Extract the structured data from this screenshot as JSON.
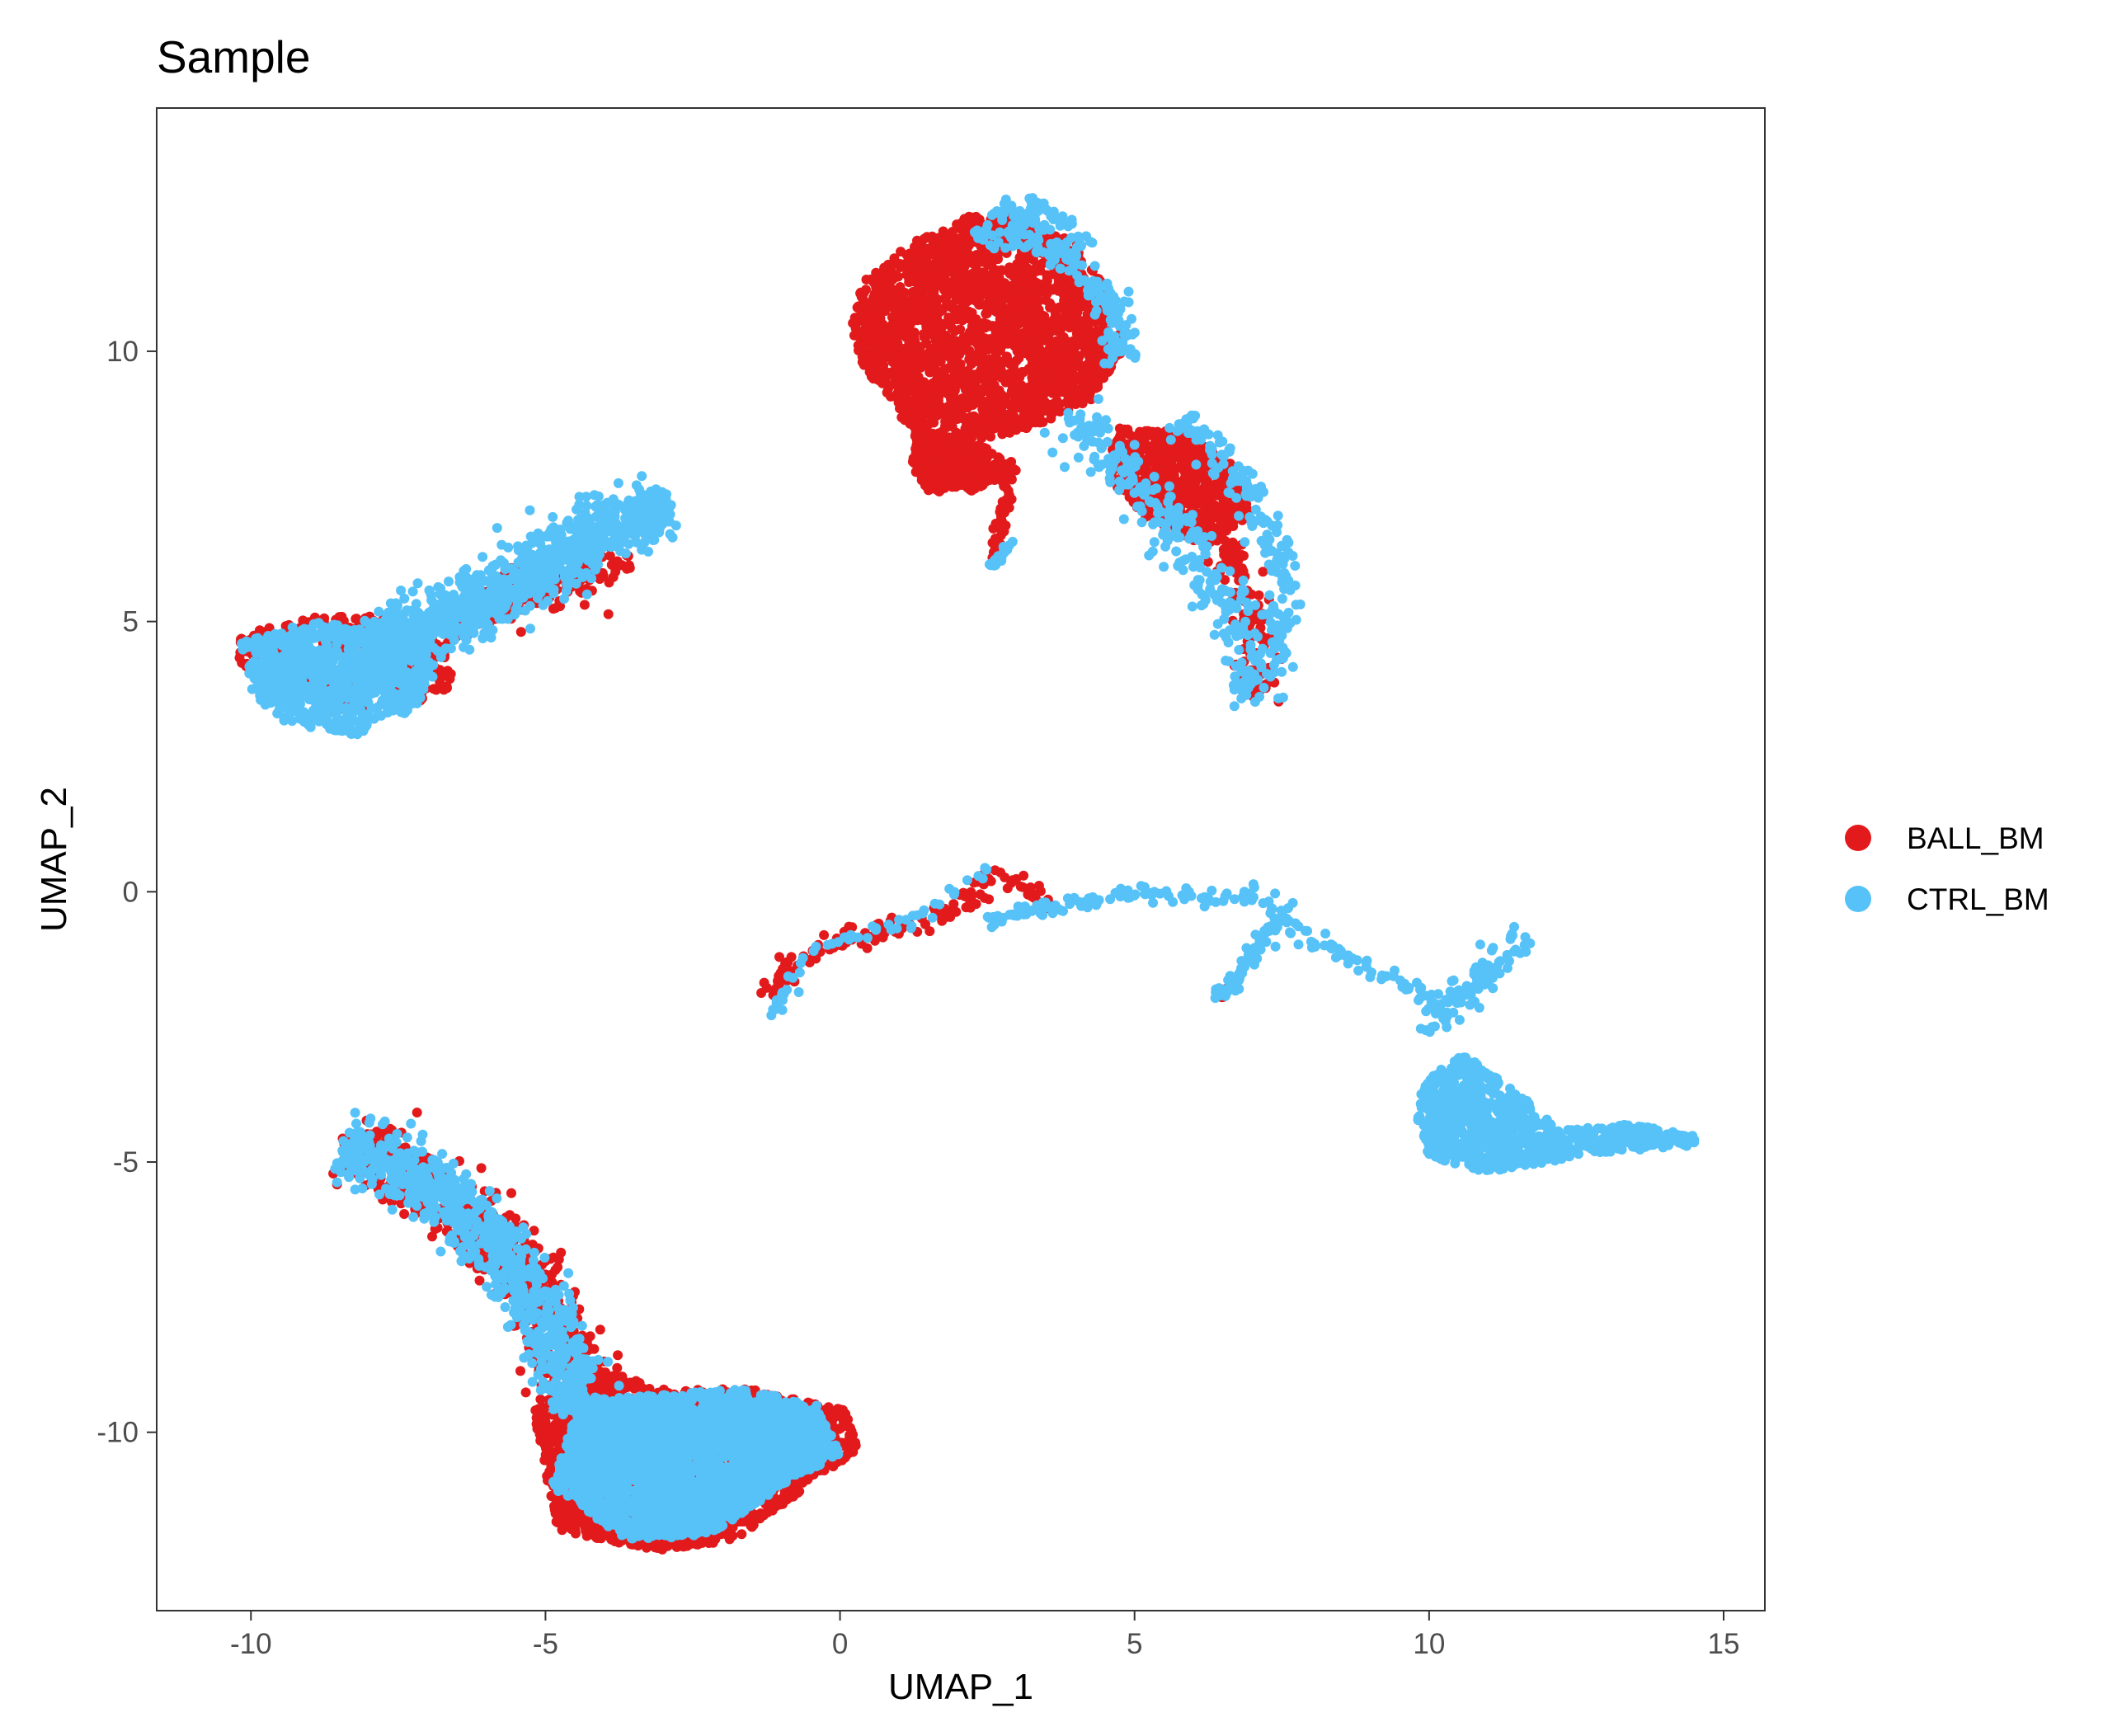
{
  "chart_data": {
    "type": "scatter",
    "title": "Sample",
    "xlabel": "UMAP_1",
    "ylabel": "UMAP_2",
    "xlim": [
      -11.6,
      15.7
    ],
    "ylim": [
      -13.3,
      14.5
    ],
    "x_ticks": [
      -10,
      -5,
      0,
      5,
      10,
      15
    ],
    "y_ticks": [
      -10,
      -5,
      0,
      5,
      10
    ],
    "x_tick_labels": [
      "-10",
      "-5",
      "0",
      "5",
      "10",
      "15"
    ],
    "y_tick_labels": [
      "-10",
      "-5",
      "0",
      "5",
      "10"
    ],
    "grid": false,
    "legend_position": "right",
    "series": [
      {
        "name": "BALL_BM",
        "color": "#E31A1C",
        "clusters": [
          {
            "kind": "blob",
            "n": 2200,
            "points": [
              [
                0.2,
                10.5
              ],
              [
                0.4,
                11.3
              ],
              [
                1.2,
                12.0
              ],
              [
                2.2,
                12.5
              ],
              [
                3.0,
                12.5
              ],
              [
                4.0,
                12.0
              ],
              [
                4.6,
                11.0
              ],
              [
                4.8,
                10.0
              ],
              [
                4.2,
                9.0
              ],
              [
                3.0,
                8.5
              ],
              [
                2.0,
                8.3
              ],
              [
                1.2,
                8.5
              ],
              [
                0.8,
                9.2
              ],
              [
                0.3,
                9.8
              ]
            ]
          },
          {
            "kind": "blob",
            "n": 420,
            "points": [
              [
                1.3,
                8.6
              ],
              [
                2.5,
                8.2
              ],
              [
                3.0,
                7.8
              ],
              [
                2.2,
                7.4
              ],
              [
                1.5,
                7.4
              ],
              [
                1.2,
                7.9
              ]
            ]
          },
          {
            "kind": "blob",
            "n": 650,
            "points": [
              [
                4.6,
                8.6
              ],
              [
                5.8,
                8.5
              ],
              [
                6.6,
                8.0
              ],
              [
                7.0,
                7.0
              ],
              [
                6.2,
                6.4
              ],
              [
                5.2,
                6.9
              ],
              [
                4.6,
                7.6
              ]
            ]
          },
          {
            "kind": "path",
            "n": 140,
            "width": 0.35,
            "points": [
              [
                6.2,
                7.0
              ],
              [
                6.7,
                6.0
              ],
              [
                7.0,
                5.0
              ],
              [
                7.1,
                4.2
              ],
              [
                7.0,
                3.6
              ]
            ]
          },
          {
            "kind": "path",
            "n": 50,
            "width": 0.1,
            "points": [
              [
                2.9,
                8.0
              ],
              [
                2.8,
                7.1
              ],
              [
                2.6,
                6.1
              ]
            ]
          },
          {
            "kind": "blob",
            "n": 480,
            "points": [
              [
                -10.2,
                4.8
              ],
              [
                -9.0,
                5.1
              ],
              [
                -7.6,
                5.1
              ],
              [
                -6.6,
                4.6
              ],
              [
                -6.6,
                3.8
              ],
              [
                -7.4,
                3.4
              ],
              [
                -8.6,
                3.3
              ],
              [
                -9.8,
                3.6
              ],
              [
                -10.2,
                4.2
              ]
            ]
          },
          {
            "kind": "path",
            "n": 200,
            "width": 0.45,
            "points": [
              [
                -7.3,
                4.6
              ],
              [
                -6.0,
                5.3
              ],
              [
                -4.8,
                5.6
              ],
              [
                -3.6,
                6.2
              ]
            ]
          },
          {
            "kind": "path",
            "n": 140,
            "width": 0.2,
            "points": [
              [
                -1.2,
                -1.9
              ],
              [
                -0.8,
                -1.3
              ],
              [
                0.0,
                -0.9
              ],
              [
                1.0,
                -0.6
              ],
              [
                2.0,
                -0.3
              ],
              [
                2.6,
                0.3
              ],
              [
                3.2,
                0.1
              ],
              [
                3.5,
                -0.4
              ]
            ]
          },
          {
            "kind": "path",
            "n": 6,
            "width": 0.1,
            "points": [
              [
                6.4,
                -2.0
              ],
              [
                6.6,
                -1.8
              ]
            ]
          },
          {
            "kind": "blob",
            "n": 2500,
            "points": [
              [
                -4.8,
                -11.8
              ],
              [
                -3.2,
                -12.2
              ],
              [
                -1.8,
                -12.0
              ],
              [
                -0.8,
                -11.2
              ],
              [
                0.3,
                -10.3
              ],
              [
                0.1,
                -9.6
              ],
              [
                -1.5,
                -9.2
              ],
              [
                -3.0,
                -9.2
              ],
              [
                -4.2,
                -8.8
              ],
              [
                -5.2,
                -9.6
              ]
            ]
          },
          {
            "kind": "path",
            "n": 750,
            "width": 0.55,
            "points": [
              [
                -8.4,
                -4.7
              ],
              [
                -7.4,
                -5.2
              ],
              [
                -6.4,
                -6.0
              ],
              [
                -5.4,
                -7.0
              ],
              [
                -4.8,
                -8.2
              ],
              [
                -4.4,
                -9.4
              ]
            ]
          }
        ]
      },
      {
        "name": "CTRL_BM",
        "color": "#56C2F8",
        "clusters": [
          {
            "kind": "blob",
            "n": 130,
            "points": [
              [
                2.2,
                12.2
              ],
              [
                3.0,
                13.0
              ],
              [
                3.8,
                12.6
              ],
              [
                4.3,
                12.0
              ],
              [
                3.6,
                11.8
              ],
              [
                2.6,
                11.9
              ]
            ]
          },
          {
            "kind": "path",
            "n": 110,
            "width": 0.3,
            "points": [
              [
                3.6,
                12.0
              ],
              [
                4.3,
                11.4
              ],
              [
                4.7,
                10.6
              ],
              [
                4.8,
                9.8
              ]
            ]
          },
          {
            "kind": "path",
            "n": 280,
            "width": 0.45,
            "points": [
              [
                3.8,
                8.8
              ],
              [
                5.0,
                7.6
              ],
              [
                5.8,
                6.6
              ],
              [
                6.4,
                5.6
              ],
              [
                6.9,
                4.6
              ],
              [
                7.0,
                3.5
              ]
            ]
          },
          {
            "kind": "path",
            "n": 160,
            "width": 0.3,
            "points": [
              [
                5.8,
                8.8
              ],
              [
                6.6,
                8.0
              ],
              [
                7.2,
                6.8
              ],
              [
                7.6,
                5.6
              ],
              [
                7.4,
                4.2
              ]
            ]
          },
          {
            "kind": "path",
            "n": 20,
            "width": 0.1,
            "points": [
              [
                2.9,
                6.5
              ],
              [
                2.6,
                6.0
              ]
            ]
          },
          {
            "kind": "blob",
            "n": 800,
            "points": [
              [
                -10.2,
                4.6
              ],
              [
                -9.0,
                5.0
              ],
              [
                -7.6,
                4.8
              ],
              [
                -6.8,
                4.2
              ],
              [
                -7.2,
                3.4
              ],
              [
                -8.2,
                2.9
              ],
              [
                -9.4,
                3.1
              ],
              [
                -10.0,
                3.7
              ]
            ]
          },
          {
            "kind": "path",
            "n": 1000,
            "width": 0.55,
            "points": [
              [
                -8.0,
                4.5
              ],
              [
                -6.8,
                5.0
              ],
              [
                -5.6,
                5.6
              ],
              [
                -4.6,
                6.3
              ],
              [
                -3.6,
                6.9
              ],
              [
                -3.0,
                7.1
              ]
            ]
          },
          {
            "kind": "path",
            "n": 55,
            "width": 0.15,
            "points": [
              [
                -1.2,
                -2.3
              ],
              [
                -0.5,
                -1.1
              ],
              [
                0.5,
                -0.7
              ],
              [
                1.5,
                -0.4
              ],
              [
                2.3,
                0.3
              ],
              [
                2.7,
                0.5
              ]
            ]
          },
          {
            "kind": "path",
            "n": 170,
            "width": 0.15,
            "points": [
              [
                2.5,
                -0.5
              ],
              [
                3.5,
                -0.3
              ],
              [
                4.5,
                -0.1
              ],
              [
                5.5,
                0.0
              ],
              [
                6.4,
                -0.2
              ],
              [
                7.1,
                0.0
              ],
              [
                7.6,
                -0.6
              ],
              [
                8.6,
                -1.2
              ],
              [
                9.6,
                -1.7
              ],
              [
                10.2,
                -2.2
              ]
            ]
          },
          {
            "kind": "path",
            "n": 70,
            "width": 0.15,
            "points": [
              [
                6.4,
                -2.0
              ],
              [
                7.0,
                -1.2
              ],
              [
                7.4,
                -0.6
              ],
              [
                7.6,
                -0.2
              ]
            ]
          },
          {
            "kind": "blob",
            "n": 900,
            "points": [
              [
                9.9,
                -3.5
              ],
              [
                10.6,
                -3.0
              ],
              [
                11.6,
                -3.8
              ],
              [
                12.2,
                -4.4
              ],
              [
                13.4,
                -4.3
              ],
              [
                14.5,
                -4.5
              ],
              [
                14.5,
                -4.7
              ],
              [
                13.2,
                -4.8
              ],
              [
                12.0,
                -5.0
              ],
              [
                11.0,
                -5.2
              ],
              [
                10.0,
                -4.9
              ],
              [
                9.8,
                -4.2
              ]
            ]
          },
          {
            "kind": "path",
            "n": 90,
            "width": 0.35,
            "points": [
              [
                10.0,
                -2.6
              ],
              [
                10.6,
                -1.8
              ],
              [
                11.4,
                -1.2
              ],
              [
                11.6,
                -0.7
              ]
            ]
          },
          {
            "kind": "blob",
            "n": 2700,
            "points": [
              [
                -4.9,
                -11.0
              ],
              [
                -3.6,
                -12.0
              ],
              [
                -2.2,
                -11.9
              ],
              [
                -1.0,
                -11.0
              ],
              [
                0.0,
                -10.4
              ],
              [
                -0.4,
                -9.5
              ],
              [
                -1.6,
                -9.2
              ],
              [
                -3.0,
                -9.3
              ],
              [
                -4.4,
                -9.4
              ]
            ]
          },
          {
            "kind": "path",
            "n": 800,
            "width": 0.5,
            "points": [
              [
                -8.4,
                -4.7
              ],
              [
                -7.2,
                -5.2
              ],
              [
                -6.2,
                -6.1
              ],
              [
                -5.4,
                -7.2
              ],
              [
                -4.8,
                -8.4
              ],
              [
                -4.4,
                -9.6
              ]
            ]
          }
        ]
      }
    ]
  }
}
